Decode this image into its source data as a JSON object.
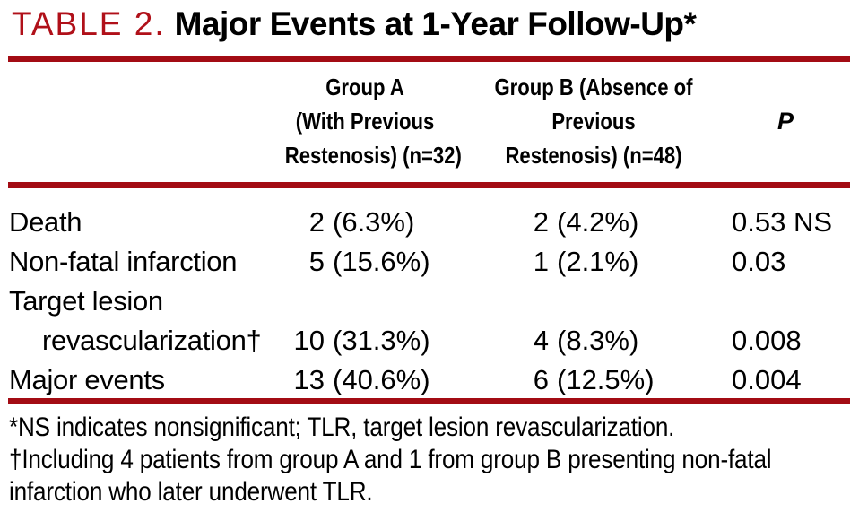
{
  "title": {
    "label": "TABLE 2.",
    "text": "Major Events at 1-Year Follow-Up*"
  },
  "colors": {
    "accent_red": "#B01019",
    "rule_red": "#A30C14",
    "ink": "#000000",
    "paper": "#FFFFFF"
  },
  "table": {
    "columns": {
      "group_a": {
        "lines": [
          "Group A",
          "(With Previous",
          "Restenosis) (n=32)"
        ]
      },
      "group_b": {
        "lines": [
          "Group B (Absence of",
          "Previous",
          "Restenosis) (n=48)"
        ]
      },
      "p": {
        "label": "P"
      }
    },
    "rows": [
      {
        "label_lines": [
          "Death"
        ],
        "group_a": {
          "n": "2",
          "pct": "(6.3%)"
        },
        "group_b": {
          "n": "2",
          "pct": "(4.2%)"
        },
        "p": "0.53 NS"
      },
      {
        "label_lines": [
          "Non-fatal infarction"
        ],
        "group_a": {
          "n": "5",
          "pct": "(15.6%)"
        },
        "group_b": {
          "n": "1",
          "pct": "(2.1%)"
        },
        "p": "0.03"
      },
      {
        "label_lines": [
          "Target lesion",
          "revascularization†"
        ],
        "group_a": {
          "n": "10",
          "pct": "(31.3%)"
        },
        "group_b": {
          "n": "4",
          "pct": "(8.3%)"
        },
        "p": "0.008"
      },
      {
        "label_lines": [
          "Major events"
        ],
        "group_a": {
          "n": "13",
          "pct": "(40.6%)"
        },
        "group_b": {
          "n": "6",
          "pct": "(12.5%)"
        },
        "p": "0.004"
      }
    ]
  },
  "footnotes": {
    "line1": "*NS indicates nonsignificant; TLR, target lesion revascularization.",
    "line2": "†Including 4 patients from group A and 1 from group B presenting non-fatal",
    "line3": "infarction who later underwent TLR."
  }
}
